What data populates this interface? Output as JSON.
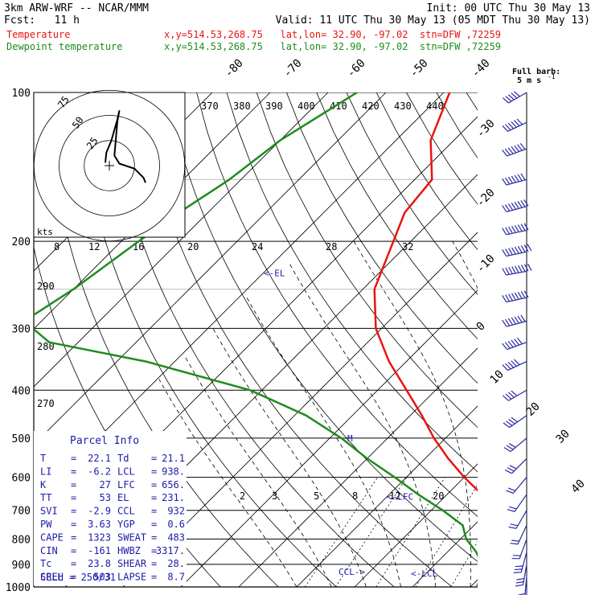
{
  "header": {
    "model": "3km ARW-WRF -- NCAR/MMM",
    "init": "Init: 00 UTC Thu 30 May 13",
    "fcst": "Fcst:   11 h",
    "valid": "Valid: 11 UTC Thu 30 May 13 (05 MDT Thu 30 May 13)",
    "temp_label": "Temperature",
    "temp_info": "x,y=514.53,268.75   lat,lon= 32.90, -97.02  stn=DFW ,72259",
    "dew_label": "Dewpoint temperature",
    "dew_info": "x,y=514.53,268.75   lat,lon= 32.90, -97.02  stn=DFW ,72259"
  },
  "colors": {
    "temperature": "#e8140f",
    "dewpoint": "#1e8c1e",
    "hodograph": "#000000",
    "barbs": "#2a2aa0",
    "markers": "#1c1caa"
  },
  "chart_data": {
    "type": "line",
    "pressure_levels": [
      "100",
      "200",
      "300",
      "400",
      "500",
      "600",
      "700",
      "800",
      "900",
      "1000"
    ],
    "pressure_range": [
      100,
      1000
    ],
    "skew_temps": [
      -80,
      -70,
      -60,
      -50,
      -40,
      -30,
      -20,
      -10,
      0,
      10,
      20,
      30,
      40
    ],
    "theta_labels": [
      "370",
      "380",
      "390",
      "400",
      "410",
      "420",
      "430",
      "440"
    ],
    "theta_e_labels": [
      "290",
      "280",
      "270"
    ],
    "mixing_ratio_labels_upper": [
      "8",
      "12",
      "16",
      "20",
      "24",
      "28",
      "32"
    ],
    "mixing_ratio_labels_lower": [
      "2",
      "3",
      "5",
      "8",
      "12",
      "20"
    ],
    "series": [
      {
        "name": "Temperature",
        "points": [
          {
            "p": 100,
            "t": -69
          },
          {
            "p": 125,
            "t": -64
          },
          {
            "p": 150,
            "t": -57
          },
          {
            "p": 175,
            "t": -56
          },
          {
            "p": 200,
            "t": -53
          },
          {
            "p": 250,
            "t": -48
          },
          {
            "p": 300,
            "t": -41
          },
          {
            "p": 350,
            "t": -33
          },
          {
            "p": 400,
            "t": -25
          },
          {
            "p": 450,
            "t": -18
          },
          {
            "p": 500,
            "t": -12
          },
          {
            "p": 550,
            "t": -6
          },
          {
            "p": 600,
            "t": 0
          },
          {
            "p": 650,
            "t": 6
          },
          {
            "p": 700,
            "t": 10
          },
          {
            "p": 750,
            "t": 14
          },
          {
            "p": 800,
            "t": 18
          },
          {
            "p": 850,
            "t": 20
          },
          {
            "p": 900,
            "t": 20.5
          },
          {
            "p": 950,
            "t": 21.5
          },
          {
            "p": 1000,
            "t": 22.1
          }
        ]
      },
      {
        "name": "Dewpoint temperature",
        "points": [
          {
            "p": 100,
            "t": -85
          },
          {
            "p": 125,
            "t": -90
          },
          {
            "p": 150,
            "t": -92
          },
          {
            "p": 175,
            "t": -95
          },
          {
            "p": 200,
            "t": -97
          },
          {
            "p": 250,
            "t": -100
          },
          {
            "p": 290,
            "t": -103
          },
          {
            "p": 320,
            "t": -95
          },
          {
            "p": 350,
            "t": -75
          },
          {
            "p": 400,
            "t": -52
          },
          {
            "p": 450,
            "t": -38
          },
          {
            "p": 500,
            "t": -28
          },
          {
            "p": 550,
            "t": -20
          },
          {
            "p": 600,
            "t": -12
          },
          {
            "p": 650,
            "t": -5
          },
          {
            "p": 700,
            "t": 2
          },
          {
            "p": 750,
            "t": 8
          },
          {
            "p": 800,
            "t": 11
          },
          {
            "p": 850,
            "t": 15
          },
          {
            "p": 900,
            "t": 18
          },
          {
            "p": 950,
            "t": 20
          },
          {
            "p": 1000,
            "t": 21.1
          }
        ]
      }
    ],
    "annotations": [
      {
        "text": "<-EL",
        "p": 231
      },
      {
        "text": "M",
        "p": 500
      },
      {
        "text": "<-LFC",
        "p": 656
      },
      {
        "text": "CCL->",
        "p": 932
      },
      {
        "text": "<-LCL",
        "p": 938
      }
    ],
    "hodograph": {
      "units_label": "kts",
      "ring_labels": [
        "25",
        "50",
        "75"
      ],
      "points": [
        [
          -4,
          3
        ],
        [
          -3,
          13
        ],
        [
          2,
          25
        ],
        [
          8,
          46
        ],
        [
          10,
          55
        ],
        [
          8,
          44
        ],
        [
          5,
          10
        ],
        [
          10,
          2
        ],
        [
          25,
          -3
        ],
        [
          34,
          -12
        ],
        [
          36,
          -17
        ]
      ]
    },
    "barb_header": "Full barb:\n5 m s^-1",
    "barb_header_lines": [
      "Full barb:",
      "5 m s"
    ],
    "barb_header_sup": "-1",
    "wind_barbs": [
      {
        "p": 100,
        "speed": 25,
        "dir": 240
      },
      {
        "p": 115,
        "speed": 30,
        "dir": 245
      },
      {
        "p": 130,
        "speed": 35,
        "dir": 250
      },
      {
        "p": 150,
        "speed": 35,
        "dir": 255
      },
      {
        "p": 170,
        "speed": 40,
        "dir": 255
      },
      {
        "p": 190,
        "speed": 40,
        "dir": 258
      },
      {
        "p": 210,
        "speed": 45,
        "dir": 258
      },
      {
        "p": 230,
        "speed": 45,
        "dir": 260
      },
      {
        "p": 260,
        "speed": 40,
        "dir": 258
      },
      {
        "p": 290,
        "speed": 35,
        "dir": 255
      },
      {
        "p": 320,
        "speed": 30,
        "dir": 250
      },
      {
        "p": 350,
        "speed": 25,
        "dir": 245
      },
      {
        "p": 400,
        "speed": 20,
        "dir": 240
      },
      {
        "p": 450,
        "speed": 20,
        "dir": 235
      },
      {
        "p": 500,
        "speed": 15,
        "dir": 230
      },
      {
        "p": 550,
        "speed": 15,
        "dir": 225
      },
      {
        "p": 600,
        "speed": 10,
        "dir": 220
      },
      {
        "p": 650,
        "speed": 10,
        "dir": 215
      },
      {
        "p": 700,
        "speed": 10,
        "dir": 210
      },
      {
        "p": 750,
        "speed": 10,
        "dir": 205
      },
      {
        "p": 800,
        "speed": 10,
        "dir": 200
      },
      {
        "p": 850,
        "speed": 15,
        "dir": 195
      },
      {
        "p": 900,
        "speed": 15,
        "dir": 190
      },
      {
        "p": 950,
        "speed": 10,
        "dir": 185
      },
      {
        "p": 1000,
        "speed": 10,
        "dir": 180
      }
    ]
  },
  "parcel": {
    "title": "Parcel  Info",
    "rows": [
      {
        "l1": "T",
        "v1": "22.1",
        "l2": "Td",
        "v2": "21.1"
      },
      {
        "l1": "LI",
        "v1": "-6.2",
        "l2": "LCL",
        "v2": "938."
      },
      {
        "l1": "K",
        "v1": "27",
        "l2": "LFC",
        "v2": "656."
      },
      {
        "l1": "TT",
        "v1": "53",
        "l2": "EL",
        "v2": "231."
      },
      {
        "l1": "SVI",
        "v1": "-2.9",
        "l2": "CCL",
        "v2": "932"
      },
      {
        "l1": "PW",
        "v1": "3.63",
        "l2": "YGP",
        "v2": "0.6"
      },
      {
        "l1": "CAPE",
        "v1": "1323",
        "l2": "SWEAT",
        "v2": "483"
      },
      {
        "l1": "CIN",
        "v1": "-161",
        "l2": "HWBZ",
        "v2": "3317."
      },
      {
        "l1": "Tc",
        "v1": "23.8",
        "l2": "SHEAR",
        "v2": "28."
      },
      {
        "l1": "SREH",
        "v1": "503",
        "l2": "LAPSE",
        "v2": "8.7"
      }
    ],
    "cell": "CELL = 250/31"
  }
}
